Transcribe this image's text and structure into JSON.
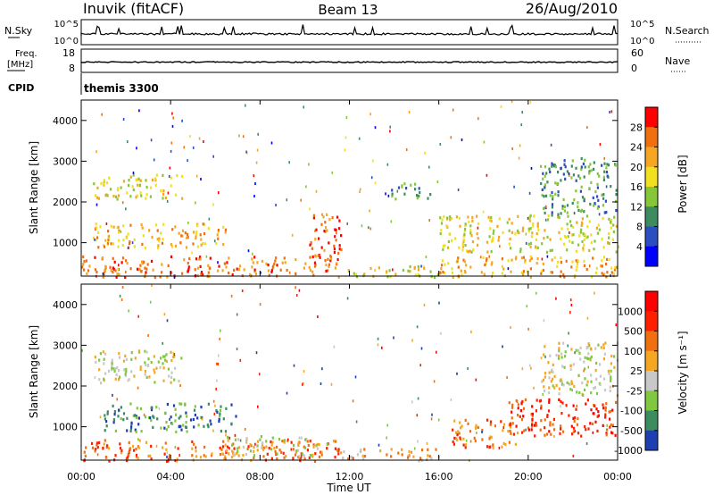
{
  "header": {
    "station": "Inuvik (fitACF)",
    "beam": "Beam 13",
    "date": "26/Aug/2010"
  },
  "strips": {
    "nsky_label": "N.Sky",
    "nsearch_label": "N.Search",
    "nsky_ticks": [
      "10^5",
      "10^0"
    ],
    "nsearch_ticks": [
      "10^5",
      "10^0"
    ],
    "freq_label": "Freq.",
    "freq_unit": "[MHz]",
    "freq_ticks": [
      "18",
      "8"
    ],
    "nave_label": "Nave",
    "nave_ticks": [
      "60",
      "0"
    ],
    "cpid_label": "CPID",
    "cpid_value": "themis 3300"
  },
  "chart_data": [
    {
      "type": "heatmap",
      "panel": "power",
      "xlabel": "",
      "ylabel": "Slant Range [km]",
      "x_ticks": [
        "00:00",
        "04:00",
        "08:00",
        "12:00",
        "16:00",
        "20:00",
        "00:00"
      ],
      "xlim_hours": [
        0,
        24
      ],
      "y_ticks": [
        "4000",
        "3000",
        "2000",
        "1000"
      ],
      "ylim_km": [
        180,
        4500
      ],
      "colorbar": {
        "label": "Power [dB]",
        "ticks": [
          "28",
          "24",
          "20",
          "16",
          "12",
          "8",
          "4"
        ],
        "range": [
          0,
          30
        ],
        "colors": [
          "#0000ff",
          "#2b4fc0",
          "#3d8c60",
          "#86c73a",
          "#f0e020",
          "#f5a623",
          "#f07010",
          "#ff0000"
        ]
      },
      "regions": [
        {
          "t0": 0.0,
          "t1": 11.5,
          "r0": 180,
          "r1": 700,
          "level": 6
        },
        {
          "t0": 11.5,
          "t1": 16.0,
          "r0": 180,
          "r1": 450,
          "level": 4
        },
        {
          "t0": 16.0,
          "t1": 24.0,
          "r0": 180,
          "r1": 700,
          "level": 5
        },
        {
          "t0": 0.5,
          "t1": 6.5,
          "r0": 900,
          "r1": 1500,
          "level": 5
        },
        {
          "t0": 0.5,
          "t1": 4.5,
          "r0": 2100,
          "r1": 2700,
          "level": 4
        },
        {
          "t0": 10.2,
          "t1": 11.6,
          "r0": 600,
          "r1": 1800,
          "level": 6
        },
        {
          "t0": 13.8,
          "t1": 15.6,
          "r0": 2100,
          "r1": 2500,
          "level": 2
        },
        {
          "t0": 16.0,
          "t1": 24.0,
          "r0": 800,
          "r1": 1700,
          "level": 4
        },
        {
          "t0": 20.5,
          "t1": 24.0,
          "r0": 1700,
          "r1": 3100,
          "level": 2
        }
      ]
    },
    {
      "type": "heatmap",
      "panel": "velocity",
      "xlabel": "Time UT",
      "ylabel": "Slant Range [km]",
      "x_ticks": [
        "00:00",
        "04:00",
        "08:00",
        "12:00",
        "16:00",
        "20:00",
        "00:00"
      ],
      "xlim_hours": [
        0,
        24
      ],
      "y_ticks": [
        "4000",
        "3000",
        "2000",
        "1000"
      ],
      "ylim_km": [
        180,
        4500
      ],
      "colorbar": {
        "label": "Velocity [m s⁻¹]",
        "ticks": [
          "1000",
          "500",
          "100",
          "25",
          "-25",
          "-100",
          "-500",
          "-1000"
        ],
        "colors": [
          "#1f3fb0",
          "#3d8c60",
          "#7fc840",
          "#c8c8c8",
          "#f5a623",
          "#f07010",
          "#ff2000",
          "#ff0000"
        ]
      },
      "regions": [
        {
          "t0": 0.0,
          "t1": 11.5,
          "r0": 180,
          "r1": 700,
          "level": 5
        },
        {
          "t0": 6.5,
          "t1": 11.0,
          "r0": 300,
          "r1": 800,
          "level": 3
        },
        {
          "t0": 1.0,
          "t1": 7.0,
          "r0": 900,
          "r1": 1600,
          "level": 1
        },
        {
          "t0": 0.5,
          "t1": 4.5,
          "r0": 2100,
          "r1": 2900,
          "level": 3
        },
        {
          "t0": 11.5,
          "t1": 16.0,
          "r0": 180,
          "r1": 500,
          "level": 4
        },
        {
          "t0": 16.5,
          "t1": 19.5,
          "r0": 500,
          "r1": 1200,
          "level": 5
        },
        {
          "t0": 19.0,
          "t1": 24.0,
          "r0": 800,
          "r1": 1700,
          "level": 6
        },
        {
          "t0": 20.5,
          "t1": 24.0,
          "r0": 1800,
          "r1": 3100,
          "level": 3
        }
      ]
    }
  ]
}
